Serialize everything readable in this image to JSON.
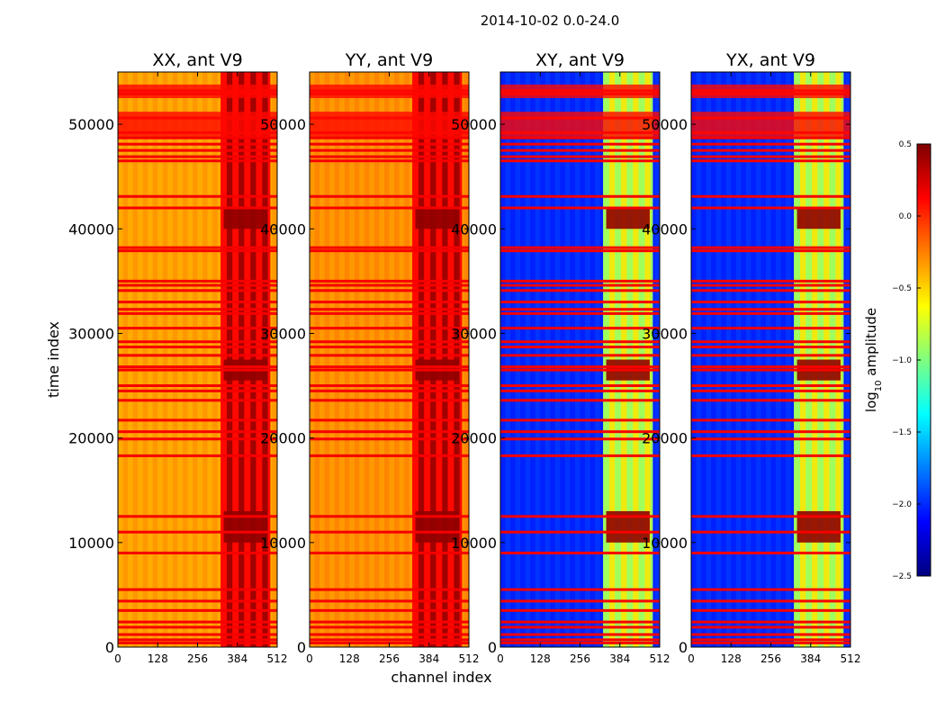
{
  "figure": {
    "suptitle": "2014-10-02 0.0-24.0"
  },
  "colors": {
    "colormap": [
      "#00007f",
      "#0000ff",
      "#007fff",
      "#00ffff",
      "#7fff7f",
      "#ffff00",
      "#ff7f00",
      "#ff0000",
      "#7f0000"
    ]
  },
  "chart_data": [
    {
      "type": "heatmap",
      "title": "XX, ant V9",
      "xlabel": "",
      "ylabel": "time index",
      "xlim": [
        0,
        512
      ],
      "ylim": [
        0,
        55000
      ],
      "xticks": [
        0,
        128,
        256,
        384,
        512
      ],
      "yticks": [
        0,
        10000,
        20000,
        30000,
        40000,
        50000
      ],
      "base_level": -0.35,
      "rfi_channels": [
        330,
        490
      ],
      "rfi_level": 0.1,
      "z_description": "log10 amplitude"
    },
    {
      "type": "heatmap",
      "title": "YY, ant V9",
      "xlabel": "channel index",
      "ylabel": "",
      "xlim": [
        0,
        512
      ],
      "ylim": [
        0,
        55000
      ],
      "xticks": [
        0,
        128,
        256,
        384,
        512
      ],
      "yticks": [
        0,
        10000,
        20000,
        30000,
        40000,
        50000
      ],
      "base_level": -0.3,
      "rfi_channels": [
        330,
        490
      ],
      "rfi_level": 0.1,
      "z_description": "log10 amplitude"
    },
    {
      "type": "heatmap",
      "title": "XY, ant V9",
      "xlabel": "",
      "ylabel": "",
      "xlim": [
        0,
        512
      ],
      "ylim": [
        0,
        55000
      ],
      "xticks": [
        0,
        128,
        256,
        384,
        512
      ],
      "yticks": [
        0,
        10000,
        20000,
        30000,
        40000,
        50000
      ],
      "base_level": -2.0,
      "rfi_channels": [
        330,
        490
      ],
      "rfi_level": -0.9,
      "z_description": "log10 amplitude"
    },
    {
      "type": "heatmap",
      "title": "YX, ant V9",
      "xlabel": "",
      "ylabel": "",
      "xlim": [
        0,
        512
      ],
      "ylim": [
        0,
        55000
      ],
      "xticks": [
        0,
        128,
        256,
        384,
        512
      ],
      "yticks": [
        0,
        10000,
        20000,
        30000,
        40000,
        50000
      ],
      "base_level": -2.0,
      "rfi_channels": [
        330,
        490
      ],
      "rfi_level": -0.9,
      "z_description": "log10 amplitude"
    }
  ],
  "colorbar": {
    "label_main": "log",
    "label_sub": "10",
    "label_rest": " amplitude",
    "vmin": -2.5,
    "vmax": 0.5,
    "ticks": [
      0.5,
      0.0,
      -0.5,
      -1.0,
      -1.5,
      -2.0,
      -2.5
    ],
    "tick_labels": [
      "0.5",
      "0.0",
      "−0.5",
      "−1.0",
      "−1.5",
      "−2.0",
      "−2.5"
    ]
  },
  "flagged_rows": [
    53200,
    52900,
    50600,
    49200,
    48700,
    48100,
    47500,
    46900,
    46500,
    43100,
    42000,
    38200,
    37900,
    35000,
    34600,
    34100,
    33000,
    32300,
    31900,
    30500,
    29200,
    28700,
    27900,
    26800,
    26500,
    25000,
    24500,
    23600,
    21700,
    20600,
    19900,
    18300,
    12500,
    11000,
    9000,
    5500,
    4400,
    3500,
    2400,
    1900,
    1200,
    700,
    400
  ]
}
